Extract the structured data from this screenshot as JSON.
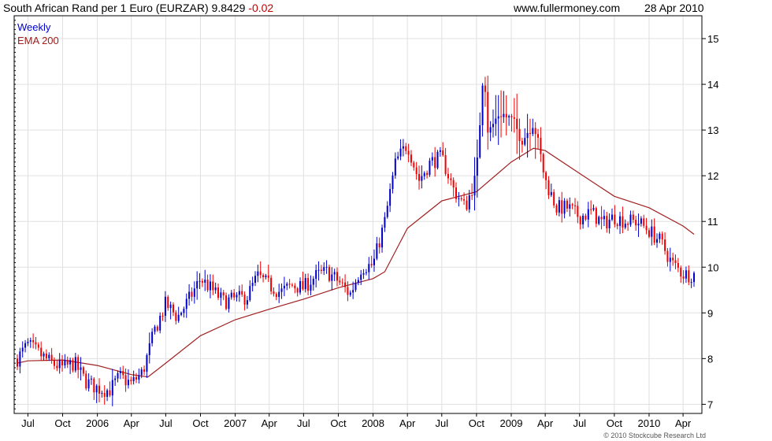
{
  "header": {
    "title": "South African Rand per 1 Euro (EURZAR) 9.8429",
    "change": "-0.02",
    "site": "www.fullermoney.com",
    "date": "28 Apr 2010"
  },
  "footer": {
    "copyright": "© 2010 Stockcube Research Ltd"
  },
  "colors": {
    "up": "#0000cc",
    "down": "#ee0000",
    "ema": "#a02020",
    "grid": "#e0e0e0",
    "frame": "#000000"
  },
  "chart_data": {
    "type": "candlestick",
    "x_type": "date",
    "x_range": [
      "2005-06-03",
      "2010-04-30"
    ],
    "ylim": [
      6.8,
      15.5
    ],
    "y_scale": "linear",
    "grid": true,
    "legend_position": "top-left",
    "y_ticks": [
      7,
      8,
      9,
      10,
      11,
      12,
      13,
      14,
      15
    ],
    "x_ticks": [
      {
        "label": "Jul",
        "date": "2005-07-01"
      },
      {
        "label": "Oct",
        "date": "2005-10-01"
      },
      {
        "label": "2006",
        "date": "2006-01-01"
      },
      {
        "label": "Apr",
        "date": "2006-04-01"
      },
      {
        "label": "Jul",
        "date": "2006-07-01"
      },
      {
        "label": "Oct",
        "date": "2006-10-01"
      },
      {
        "label": "2007",
        "date": "2007-01-01"
      },
      {
        "label": "Apr",
        "date": "2007-04-01"
      },
      {
        "label": "Jul",
        "date": "2007-07-01"
      },
      {
        "label": "Oct",
        "date": "2007-10-01"
      },
      {
        "label": "2008",
        "date": "2008-01-01"
      },
      {
        "label": "Apr",
        "date": "2008-04-01"
      },
      {
        "label": "Jul",
        "date": "2008-07-01"
      },
      {
        "label": "Oct",
        "date": "2008-10-01"
      },
      {
        "label": "2009",
        "date": "2009-01-01"
      },
      {
        "label": "Apr",
        "date": "2009-04-01"
      },
      {
        "label": "Jul",
        "date": "2009-07-01"
      },
      {
        "label": "Oct",
        "date": "2009-10-01"
      },
      {
        "label": "2010",
        "date": "2010-01-01"
      },
      {
        "label": "Apr",
        "date": "2010-04-01"
      }
    ],
    "series": [
      {
        "name": "Weekly",
        "kind": "price",
        "points": [
          {
            "x": "2005-06-03",
            "y": 8.0
          },
          {
            "x": "2005-07-01",
            "y": 8.3
          },
          {
            "x": "2005-08-01",
            "y": 8.1
          },
          {
            "x": "2005-09-01",
            "y": 7.9
          },
          {
            "x": "2005-10-01",
            "y": 7.8
          },
          {
            "x": "2005-11-01",
            "y": 7.9
          },
          {
            "x": "2005-12-01",
            "y": 7.5
          },
          {
            "x": "2006-01-01",
            "y": 7.35
          },
          {
            "x": "2006-02-01",
            "y": 7.3
          },
          {
            "x": "2006-03-01",
            "y": 7.6
          },
          {
            "x": "2006-04-01",
            "y": 7.45
          },
          {
            "x": "2006-05-01",
            "y": 7.7
          },
          {
            "x": "2006-06-01",
            "y": 8.6
          },
          {
            "x": "2006-07-01",
            "y": 9.2
          },
          {
            "x": "2006-08-01",
            "y": 8.9
          },
          {
            "x": "2006-09-01",
            "y": 9.3
          },
          {
            "x": "2006-10-01",
            "y": 9.75
          },
          {
            "x": "2006-11-01",
            "y": 9.5
          },
          {
            "x": "2006-12-01",
            "y": 9.25
          },
          {
            "x": "2007-01-01",
            "y": 9.3
          },
          {
            "x": "2007-02-01",
            "y": 9.35
          },
          {
            "x": "2007-03-01",
            "y": 9.8
          },
          {
            "x": "2007-04-01",
            "y": 9.6
          },
          {
            "x": "2007-05-01",
            "y": 9.45
          },
          {
            "x": "2007-06-01",
            "y": 9.6
          },
          {
            "x": "2007-07-01",
            "y": 9.55
          },
          {
            "x": "2007-08-01",
            "y": 9.8
          },
          {
            "x": "2007-09-01",
            "y": 9.9
          },
          {
            "x": "2007-10-01",
            "y": 9.7
          },
          {
            "x": "2007-11-01",
            "y": 9.4
          },
          {
            "x": "2007-12-01",
            "y": 10.0
          },
          {
            "x": "2008-01-01",
            "y": 10.05
          },
          {
            "x": "2008-02-01",
            "y": 11.0
          },
          {
            "x": "2008-03-01",
            "y": 12.3
          },
          {
            "x": "2008-04-01",
            "y": 12.7
          },
          {
            "x": "2008-05-01",
            "y": 11.9
          },
          {
            "x": "2008-06-01",
            "y": 12.3
          },
          {
            "x": "2008-07-01",
            "y": 12.4
          },
          {
            "x": "2008-08-01",
            "y": 11.7
          },
          {
            "x": "2008-09-01",
            "y": 11.3
          },
          {
            "x": "2008-10-01",
            "y": 12.0
          },
          {
            "x": "2008-10-20",
            "y": 14.5
          },
          {
            "x": "2008-11-01",
            "y": 12.9
          },
          {
            "x": "2008-12-01",
            "y": 13.4
          },
          {
            "x": "2009-01-01",
            "y": 13.2
          },
          {
            "x": "2009-02-01",
            "y": 12.8
          },
          {
            "x": "2009-03-01",
            "y": 13.2
          },
          {
            "x": "2009-04-01",
            "y": 11.9
          },
          {
            "x": "2009-05-01",
            "y": 11.3
          },
          {
            "x": "2009-06-01",
            "y": 11.3
          },
          {
            "x": "2009-07-01",
            "y": 11.1
          },
          {
            "x": "2009-08-01",
            "y": 11.2
          },
          {
            "x": "2009-09-01",
            "y": 10.95
          },
          {
            "x": "2009-10-01",
            "y": 11.1
          },
          {
            "x": "2009-11-01",
            "y": 11.0
          },
          {
            "x": "2009-12-01",
            "y": 11.0
          },
          {
            "x": "2010-01-01",
            "y": 10.8
          },
          {
            "x": "2010-02-01",
            "y": 10.55
          },
          {
            "x": "2010-03-01",
            "y": 10.1
          },
          {
            "x": "2010-04-01",
            "y": 9.85
          },
          {
            "x": "2010-04-30",
            "y": 9.84
          }
        ]
      },
      {
        "name": "EMA 200",
        "kind": "line",
        "points": [
          {
            "x": "2005-06-03",
            "y": 7.9
          },
          {
            "x": "2005-07-01",
            "y": 7.95
          },
          {
            "x": "2005-10-01",
            "y": 7.97
          },
          {
            "x": "2006-01-01",
            "y": 7.85
          },
          {
            "x": "2006-04-01",
            "y": 7.65
          },
          {
            "x": "2006-05-15",
            "y": 7.6
          },
          {
            "x": "2006-07-01",
            "y": 7.9
          },
          {
            "x": "2006-10-01",
            "y": 8.5
          },
          {
            "x": "2007-01-01",
            "y": 8.85
          },
          {
            "x": "2007-04-01",
            "y": 9.08
          },
          {
            "x": "2007-07-01",
            "y": 9.3
          },
          {
            "x": "2007-10-01",
            "y": 9.55
          },
          {
            "x": "2008-01-01",
            "y": 9.75
          },
          {
            "x": "2008-02-01",
            "y": 9.9
          },
          {
            "x": "2008-04-01",
            "y": 10.85
          },
          {
            "x": "2008-07-01",
            "y": 11.45
          },
          {
            "x": "2008-10-01",
            "y": 11.65
          },
          {
            "x": "2009-01-01",
            "y": 12.3
          },
          {
            "x": "2009-03-01",
            "y": 12.6
          },
          {
            "x": "2009-04-01",
            "y": 12.55
          },
          {
            "x": "2009-07-01",
            "y": 12.05
          },
          {
            "x": "2009-10-01",
            "y": 11.55
          },
          {
            "x": "2010-01-01",
            "y": 11.3
          },
          {
            "x": "2010-04-01",
            "y": 10.9
          },
          {
            "x": "2010-04-30",
            "y": 10.72
          }
        ]
      }
    ]
  }
}
